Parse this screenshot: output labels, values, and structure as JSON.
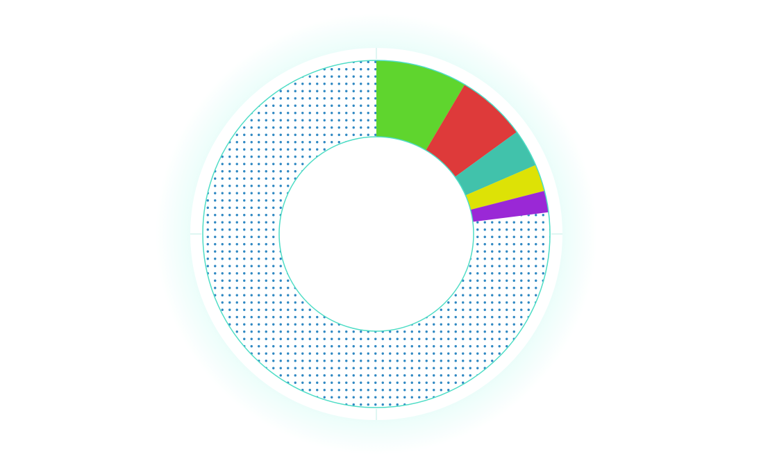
{
  "chart_data": {
    "type": "pie",
    "variant": "donut",
    "title": "",
    "legend": "none",
    "data_labels": "none",
    "start_angle_deg": 0,
    "direction": "clockwise",
    "slices": [
      {
        "value": 8.5,
        "color": "#5fd52e"
      },
      {
        "value": 6.5,
        "color": "#de3a3a"
      },
      {
        "value": 3.5,
        "color": "#41c2ab"
      },
      {
        "value": 2.5,
        "color": "#dde206"
      },
      {
        "value": 2.0,
        "color": "#9a28d6"
      },
      {
        "value": 77.0,
        "color": "#ffffff",
        "pattern": "dots",
        "pattern_color": "#2f88c2"
      }
    ],
    "outline_color": "#4fddc6",
    "glow_color": "#6ff2dc"
  }
}
